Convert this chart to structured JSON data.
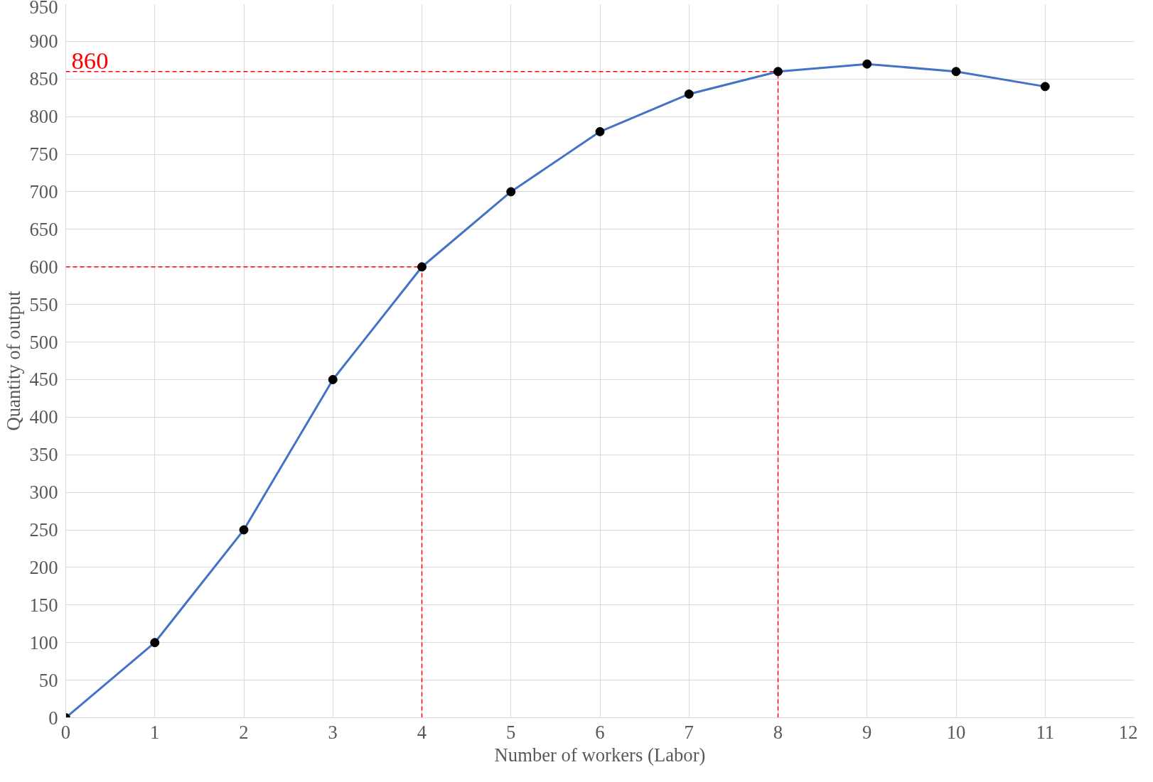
{
  "chart_data": {
    "type": "line",
    "xlabel": "Number of workers (Labor)",
    "ylabel": "Quantity of output",
    "x": [
      0,
      1,
      2,
      3,
      4,
      5,
      6,
      7,
      8,
      9,
      10,
      11
    ],
    "series": [
      {
        "color": "#4472c4",
        "values": [
          0,
          100,
          250,
          450,
          600,
          700,
          780,
          830,
          860,
          870,
          860,
          840
        ]
      }
    ],
    "marker": "circle",
    "xlim": [
      0,
      12
    ],
    "xticks": [
      0,
      1,
      2,
      3,
      4,
      5,
      6,
      7,
      8,
      9,
      10,
      11,
      12
    ],
    "ylim": [
      0,
      950
    ],
    "yticks": [
      0,
      50,
      100,
      150,
      200,
      250,
      300,
      350,
      400,
      450,
      500,
      550,
      600,
      650,
      700,
      750,
      800,
      850,
      900,
      950
    ],
    "grid": true,
    "ref_lines": [
      {
        "axis": "y",
        "value": 860,
        "label": "860",
        "color": "#ff0000",
        "line_style": "dashed"
      },
      {
        "axis": "y",
        "value": 600,
        "label": null,
        "color": "#ff0000",
        "line_style": "dashed"
      },
      {
        "axis": "x",
        "value": 4,
        "label": null,
        "color": "#ff0000",
        "line_style": "dashed"
      },
      {
        "axis": "x",
        "value": 8,
        "label": null,
        "color": "#ff0000",
        "line_style": "dashed"
      }
    ]
  }
}
